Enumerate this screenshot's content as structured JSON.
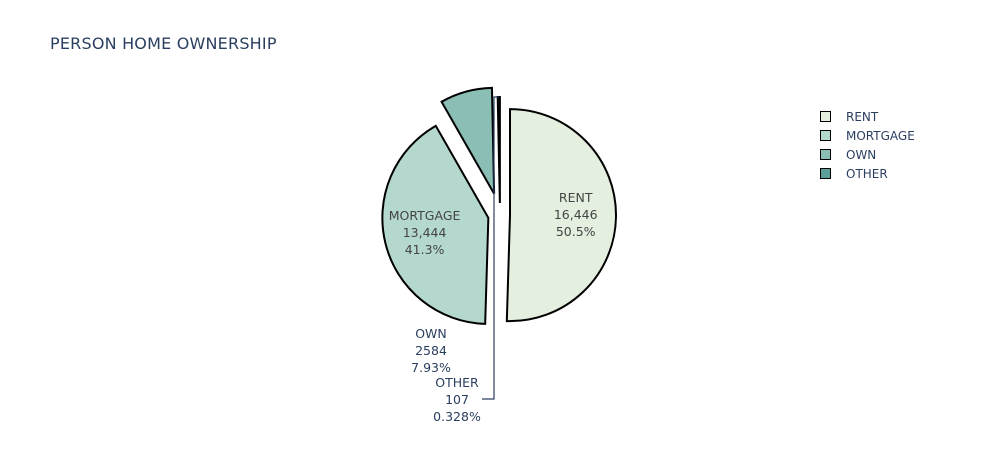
{
  "chart_data": {
    "type": "pie",
    "title": "PERSON HOME OWNERSHIP",
    "slices": [
      {
        "label": "RENT",
        "value": 16446,
        "value_text": "16,446",
        "percent_text": "50.5%",
        "color": "#e4efe0"
      },
      {
        "label": "MORTGAGE",
        "value": 13444,
        "value_text": "13,444",
        "percent_text": "41.3%",
        "color": "#b4d8cd"
      },
      {
        "label": "OWN",
        "value": 2584,
        "value_text": "2584",
        "percent_text": "7.93%",
        "color": "#8bbfb5"
      },
      {
        "label": "OTHER",
        "value": 107,
        "value_text": "107",
        "percent_text": "0.328%",
        "color": "#5b9e9a"
      }
    ],
    "legend_position": "top-right",
    "text_color": "#2a3f5f",
    "label_color": "#444444",
    "stroke_color": "#000000"
  }
}
